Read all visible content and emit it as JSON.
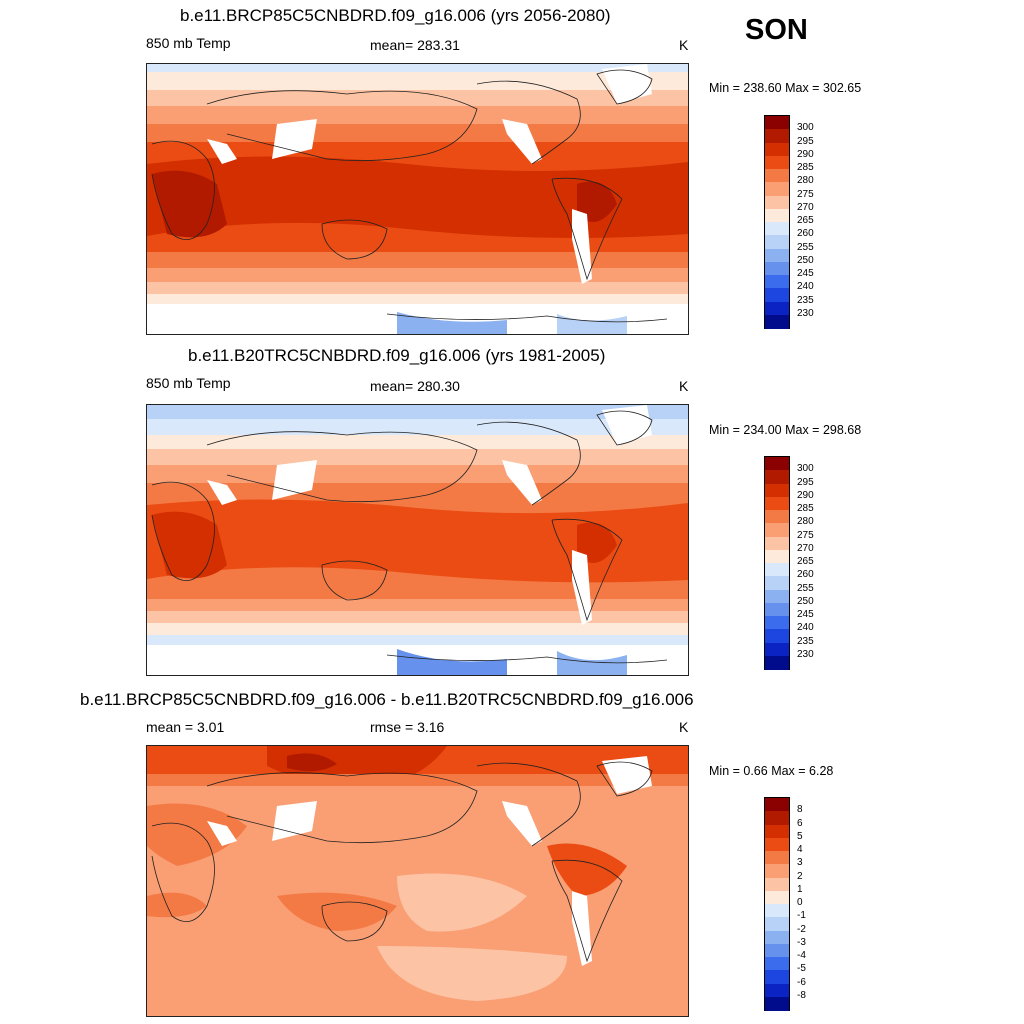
{
  "season": "SON",
  "panels": [
    {
      "title": "b.e11.BRCP85C5CNBDRD.f09_g16.006 (yrs 2056-2080)",
      "left_label": "850 mb Temp",
      "center_label": "mean= 283.31",
      "units": "K",
      "minmax": "Min = 238.60 Max = 302.65",
      "colorbar": {
        "ticks": [
          "300",
          "295",
          "290",
          "285",
          "280",
          "275",
          "270",
          "265",
          "260",
          "255",
          "250",
          "245",
          "240",
          "235",
          "230"
        ],
        "colors": [
          "#8b0000",
          "#b21a00",
          "#d42f00",
          "#ea4c13",
          "#f47a45",
          "#fa9e74",
          "#fcc4a4",
          "#feeadb",
          "#d9e8fa",
          "#b8d1f6",
          "#8cb1f0",
          "#6692ee",
          "#3a6ced",
          "#1d45e0",
          "#0a23c2",
          "#000c8c"
        ]
      }
    },
    {
      "title": "b.e11.B20TRC5CNBDRD.f09_g16.006 (yrs 1981-2005)",
      "left_label": "850 mb Temp",
      "center_label": "mean= 280.30",
      "units": "K",
      "minmax": "Min = 234.00 Max = 298.68",
      "colorbar": {
        "ticks": [
          "300",
          "295",
          "290",
          "285",
          "280",
          "275",
          "270",
          "265",
          "260",
          "255",
          "250",
          "245",
          "240",
          "235",
          "230"
        ],
        "colors": [
          "#8b0000",
          "#b21a00",
          "#d42f00",
          "#ea4c13",
          "#f47a45",
          "#fa9e74",
          "#fcc4a4",
          "#feeadb",
          "#d9e8fa",
          "#b8d1f6",
          "#8cb1f0",
          "#6692ee",
          "#3a6ced",
          "#1d45e0",
          "#0a23c2",
          "#000c8c"
        ]
      }
    },
    {
      "title": "b.e11.BRCP85C5CNBDRD.f09_g16.006 - b.e11.B20TRC5CNBDRD.f09_g16.006",
      "left_label": "mean =   3.01",
      "center_label": "rmse =   3.16",
      "units": "K",
      "minmax": "Min =   0.66 Max =   6.28",
      "colorbar": {
        "ticks": [
          "8",
          "6",
          "5",
          "4",
          "3",
          "2",
          "1",
          "0",
          "-1",
          "-2",
          "-3",
          "-4",
          "-5",
          "-6",
          "-8"
        ],
        "colors": [
          "#8b0000",
          "#b21a00",
          "#d42f00",
          "#ea4c13",
          "#f47a45",
          "#fa9e74",
          "#fcc4a4",
          "#feeadb",
          "#d9e8fa",
          "#b8d1f6",
          "#8cb1f0",
          "#6692ee",
          "#3a6ced",
          "#1d45e0",
          "#0a23c2",
          "#000c8c"
        ]
      }
    }
  ]
}
